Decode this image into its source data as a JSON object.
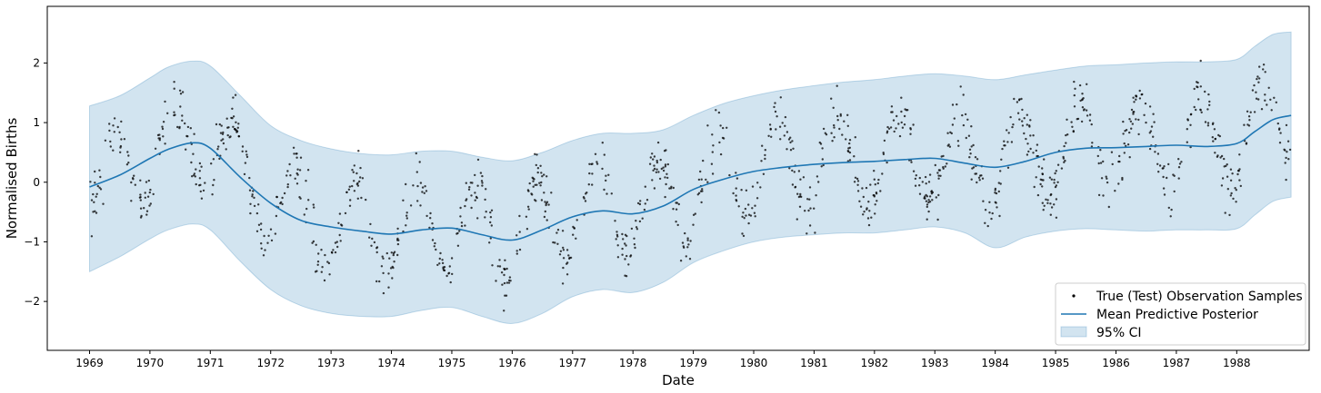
{
  "chart_data": {
    "type": "line",
    "title": "",
    "xlabel": "Date",
    "ylabel": "Normalised Births",
    "xlim": [
      1968.3,
      1989.2
    ],
    "ylim": [
      -2.82,
      2.95
    ],
    "grid": false,
    "legend_position": "bottom-right",
    "x_ticks": [
      "1969",
      "1970",
      "1971",
      "1972",
      "1973",
      "1974",
      "1975",
      "1976",
      "1977",
      "1978",
      "1979",
      "1980",
      "1981",
      "1982",
      "1983",
      "1984",
      "1985",
      "1986",
      "1987",
      "1988"
    ],
    "y_ticks": [
      -2,
      -1,
      0,
      1,
      2
    ],
    "y_tick_labels": [
      "−2",
      "−1",
      "0",
      "1",
      "2"
    ],
    "colors": {
      "mean": "#1f77b4",
      "ci_fill": "#1f77b4",
      "observations": "#000000"
    },
    "series": [
      {
        "name": "True (Test) Observation Samples",
        "kind": "scatter",
        "seasonal_amplitude": 0.75,
        "noise_sd": 0.22,
        "trend_offset": 0.05
      },
      {
        "name": "Mean Predictive Posterior",
        "kind": "line",
        "x": [
          1969.0,
          1969.5,
          1970.0,
          1970.3,
          1970.7,
          1971.0,
          1971.5,
          1972.0,
          1972.5,
          1973.0,
          1973.5,
          1974.0,
          1974.5,
          1975.0,
          1975.5,
          1976.0,
          1976.5,
          1977.0,
          1977.5,
          1978.0,
          1978.5,
          1979.0,
          1979.5,
          1980.0,
          1980.5,
          1981.0,
          1981.5,
          1982.0,
          1982.5,
          1983.0,
          1983.5,
          1984.0,
          1984.5,
          1985.0,
          1985.5,
          1986.0,
          1986.5,
          1987.0,
          1987.5,
          1988.0,
          1988.3,
          1988.6,
          1988.9
        ],
        "y": [
          -0.08,
          0.12,
          0.4,
          0.55,
          0.66,
          0.57,
          0.08,
          -0.35,
          -0.64,
          -0.75,
          -0.82,
          -0.87,
          -0.8,
          -0.77,
          -0.88,
          -0.97,
          -0.8,
          -0.58,
          -0.48,
          -0.53,
          -0.4,
          -0.12,
          0.05,
          0.18,
          0.25,
          0.3,
          0.33,
          0.35,
          0.38,
          0.4,
          0.32,
          0.25,
          0.35,
          0.5,
          0.57,
          0.58,
          0.6,
          0.62,
          0.6,
          0.65,
          0.85,
          1.05,
          1.12
        ]
      },
      {
        "name": "95% CI",
        "kind": "band",
        "x": [
          1969.0,
          1969.5,
          1970.0,
          1970.3,
          1970.7,
          1971.0,
          1971.5,
          1972.0,
          1972.5,
          1973.0,
          1973.5,
          1974.0,
          1974.5,
          1975.0,
          1975.5,
          1976.0,
          1976.5,
          1977.0,
          1977.5,
          1978.0,
          1978.5,
          1979.0,
          1979.5,
          1980.0,
          1980.5,
          1981.0,
          1981.5,
          1982.0,
          1982.5,
          1983.0,
          1983.5,
          1984.0,
          1984.5,
          1985.0,
          1985.5,
          1986.0,
          1986.5,
          1987.0,
          1987.5,
          1988.0,
          1988.3,
          1988.6,
          1988.9
        ],
        "upper": [
          1.28,
          1.45,
          1.75,
          1.93,
          2.03,
          1.95,
          1.45,
          0.95,
          0.7,
          0.56,
          0.48,
          0.46,
          0.52,
          0.52,
          0.42,
          0.36,
          0.5,
          0.7,
          0.82,
          0.82,
          0.88,
          1.12,
          1.32,
          1.45,
          1.55,
          1.62,
          1.68,
          1.72,
          1.78,
          1.82,
          1.78,
          1.72,
          1.8,
          1.88,
          1.95,
          1.97,
          2.0,
          2.02,
          2.02,
          2.06,
          2.28,
          2.48,
          2.52
        ],
        "lower": [
          -1.5,
          -1.25,
          -0.95,
          -0.8,
          -0.7,
          -0.8,
          -1.33,
          -1.8,
          -2.07,
          -2.2,
          -2.25,
          -2.25,
          -2.15,
          -2.1,
          -2.25,
          -2.37,
          -2.2,
          -1.92,
          -1.8,
          -1.85,
          -1.68,
          -1.35,
          -1.15,
          -1.0,
          -0.92,
          -0.88,
          -0.85,
          -0.85,
          -0.8,
          -0.75,
          -0.85,
          -1.1,
          -0.92,
          -0.82,
          -0.78,
          -0.8,
          -0.82,
          -0.8,
          -0.8,
          -0.78,
          -0.55,
          -0.32,
          -0.25
        ]
      }
    ]
  }
}
